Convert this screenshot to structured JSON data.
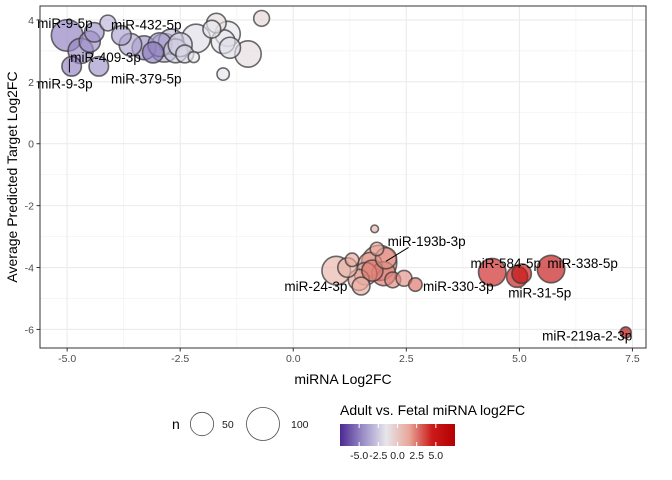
{
  "chart_data": {
    "type": "scatter",
    "xlabel": "miRNA Log2FC",
    "ylabel": "Average Predicted Target Log2FC",
    "xlim": [
      -5.6,
      7.8
    ],
    "ylim": [
      -6.6,
      4.45
    ],
    "x_ticks": [
      -5.0,
      -2.5,
      0.0,
      2.5,
      5.0,
      7.5
    ],
    "x_tick_labels": [
      "-5.0",
      "-2.5",
      "0.0",
      "2.5",
      "5.0",
      "7.5"
    ],
    "y_ticks": [
      4,
      2,
      0,
      -2,
      -4,
      -6
    ],
    "y_tick_labels": [
      "4",
      "2",
      "0",
      "-2",
      "-4",
      "-6"
    ],
    "grid": true,
    "points": [
      {
        "x": -5.0,
        "y": 3.5,
        "n": 75,
        "color": -5.0
      },
      {
        "x": -4.7,
        "y": 3.0,
        "n": 45,
        "color": -4.7
      },
      {
        "x": -4.9,
        "y": 2.5,
        "n": 25,
        "color": -4.9
      },
      {
        "x": -4.5,
        "y": 3.3,
        "n": 30,
        "color": -4.5
      },
      {
        "x": -4.3,
        "y": 2.5,
        "n": 25,
        "color": -4.3
      },
      {
        "x": -4.4,
        "y": 3.6,
        "n": 25,
        "color": -4.4
      },
      {
        "x": -4.1,
        "y": 3.9,
        "n": 15,
        "color": -3.2
      },
      {
        "x": -3.8,
        "y": 3.5,
        "n": 25,
        "color": -3.8
      },
      {
        "x": -3.6,
        "y": 3.2,
        "n": 35,
        "color": -3.6
      },
      {
        "x": -3.3,
        "y": 3.1,
        "n": 40,
        "color": -4.3
      },
      {
        "x": -3.1,
        "y": 2.95,
        "n": 30,
        "color": -5.0
      },
      {
        "x": -2.95,
        "y": 3.2,
        "n": 40,
        "color": -4.0
      },
      {
        "x": -2.85,
        "y": 3.1,
        "n": 60,
        "color": -3.5
      },
      {
        "x": -2.7,
        "y": 3.3,
        "n": 45,
        "color": -3.0
      },
      {
        "x": -2.6,
        "y": 3.0,
        "n": 40,
        "color": -2.5
      },
      {
        "x": -2.5,
        "y": 3.2,
        "n": 40,
        "color": -2.3
      },
      {
        "x": -2.4,
        "y": 2.9,
        "n": 20,
        "color": -2.0
      },
      {
        "x": -2.2,
        "y": 2.8,
        "n": 6,
        "color": -1.5
      },
      {
        "x": -2.15,
        "y": 3.4,
        "n": 60,
        "color": -1.8
      },
      {
        "x": -1.8,
        "y": 3.7,
        "n": 20,
        "color": -1.5
      },
      {
        "x": -1.7,
        "y": 3.9,
        "n": 25,
        "color": -1.0
      },
      {
        "x": -1.55,
        "y": 3.3,
        "n": 40,
        "color": -1.5
      },
      {
        "x": -1.45,
        "y": 3.55,
        "n": 45,
        "color": -1.5
      },
      {
        "x": -1.4,
        "y": 3.1,
        "n": 30,
        "color": -1.8
      },
      {
        "x": -1.55,
        "y": 2.25,
        "n": 8,
        "color": -1.4
      },
      {
        "x": -1.0,
        "y": 2.9,
        "n": 50,
        "color": -1.0
      },
      {
        "x": -0.7,
        "y": 4.05,
        "n": 15,
        "color": -0.7
      },
      {
        "x": 0.95,
        "y": -4.1,
        "n": 60,
        "color": 0.95
      },
      {
        "x": 1.2,
        "y": -4.0,
        "n": 25,
        "color": 1.0
      },
      {
        "x": 1.3,
        "y": -3.75,
        "n": 10,
        "color": 1.5
      },
      {
        "x": 1.45,
        "y": -4.4,
        "n": 30,
        "color": 1.6
      },
      {
        "x": 1.5,
        "y": -4.6,
        "n": 20,
        "color": 1.2
      },
      {
        "x": 1.6,
        "y": -4.2,
        "n": 35,
        "color": 1.4
      },
      {
        "x": 1.7,
        "y": -3.9,
        "n": 40,
        "color": 1.8
      },
      {
        "x": 1.75,
        "y": -4.1,
        "n": 30,
        "color": 2.5
      },
      {
        "x": 1.8,
        "y": -2.75,
        "n": 2,
        "color": 1.0
      },
      {
        "x": 1.85,
        "y": -3.4,
        "n": 10,
        "color": 1.5
      },
      {
        "x": 1.9,
        "y": -3.85,
        "n": 95,
        "color": 1.9
      },
      {
        "x": 2.0,
        "y": -4.2,
        "n": 40,
        "color": 2.5
      },
      {
        "x": 2.05,
        "y": -3.7,
        "n": 30,
        "color": 2.0
      },
      {
        "x": 2.2,
        "y": -4.4,
        "n": 15,
        "color": 2.2
      },
      {
        "x": 2.45,
        "y": -4.35,
        "n": 15,
        "color": 2.0
      },
      {
        "x": 2.7,
        "y": -4.55,
        "n": 10,
        "color": 2.7
      },
      {
        "x": 4.4,
        "y": -4.15,
        "n": 55,
        "color": 4.4
      },
      {
        "x": 4.95,
        "y": -4.3,
        "n": 30,
        "color": 4.95
      },
      {
        "x": 5.05,
        "y": -4.2,
        "n": 25,
        "color": 5.5
      },
      {
        "x": 5.7,
        "y": -4.05,
        "n": 55,
        "color": 5.7
      },
      {
        "x": 7.35,
        "y": -6.1,
        "n": 6,
        "color": 7.35
      }
    ],
    "annotations": [
      {
        "text": "miR-9-5p",
        "x": -5.05,
        "y": 3.9,
        "anchor": "middle"
      },
      {
        "text": "miR-432-5p",
        "x": -3.25,
        "y": 3.85,
        "anchor": "middle"
      },
      {
        "text": "miR-409-3p",
        "x": -4.15,
        "y": 2.8,
        "anchor": "middle"
      },
      {
        "text": "miR-9-3p",
        "x": -5.05,
        "y": 1.95,
        "anchor": "middle"
      },
      {
        "text": "miR-379-5p",
        "x": -3.25,
        "y": 2.1,
        "anchor": "middle"
      },
      {
        "text": "miR-193b-3p",
        "x": 2.95,
        "y": -3.15,
        "anchor": "middle"
      },
      {
        "text": "miR-584-5p",
        "x": 4.7,
        "y": -3.85,
        "anchor": "middle"
      },
      {
        "text": "miR-338-5p",
        "x": 6.4,
        "y": -3.85,
        "anchor": "middle"
      },
      {
        "text": "miR-24-3p",
        "x": 0.5,
        "y": -4.6,
        "anchor": "middle"
      },
      {
        "text": "miR-330-3p",
        "x": 3.65,
        "y": -4.6,
        "anchor": "middle"
      },
      {
        "text": "miR-31-5p",
        "x": 5.45,
        "y": -4.8,
        "anchor": "middle"
      },
      {
        "text": "miR-219a-2-3p",
        "x": 6.5,
        "y": -6.2,
        "anchor": "middle"
      }
    ],
    "leader_lines": [
      {
        "from": [
          -4.95,
          2.3
        ],
        "to": [
          -4.95,
          2.75
        ]
      },
      {
        "from": [
          2.55,
          -3.35
        ],
        "to": [
          2.05,
          -3.8
        ]
      }
    ],
    "size_legend": {
      "title": "n",
      "entries": [
        {
          "label": "50",
          "n": 50
        },
        {
          "label": "100",
          "n": 100
        }
      ]
    },
    "color_legend": {
      "title": "Adult vs. Fetal miRNA log2FC",
      "low": -7.5,
      "high": 7.5,
      "colors": [
        "#4b2991",
        "#9b8ec8",
        "#e6e6ec",
        "#e8a79a",
        "#cc1a1a",
        "#b30000"
      ],
      "ticks": [
        -5.0,
        -2.5,
        0.0,
        2.5,
        5.0
      ],
      "tick_labels": [
        "-5.0",
        "-2.5",
        "0.0",
        "2.5",
        "5.0"
      ]
    }
  }
}
